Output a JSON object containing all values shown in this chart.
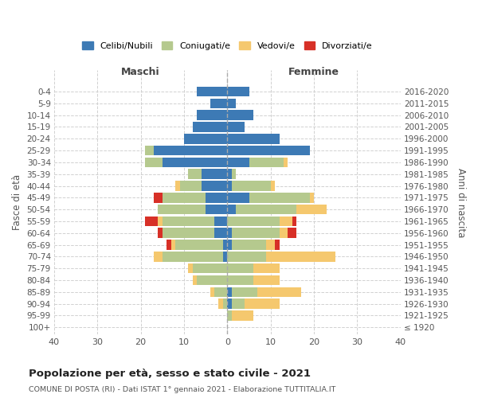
{
  "age_groups": [
    "100+",
    "95-99",
    "90-94",
    "85-89",
    "80-84",
    "75-79",
    "70-74",
    "65-69",
    "60-64",
    "55-59",
    "50-54",
    "45-49",
    "40-44",
    "35-39",
    "30-34",
    "25-29",
    "20-24",
    "15-19",
    "10-14",
    "5-9",
    "0-4"
  ],
  "birth_years": [
    "≤ 1920",
    "1921-1925",
    "1926-1930",
    "1931-1935",
    "1936-1940",
    "1941-1945",
    "1946-1950",
    "1951-1955",
    "1956-1960",
    "1961-1965",
    "1966-1970",
    "1971-1975",
    "1976-1980",
    "1981-1985",
    "1986-1990",
    "1991-1995",
    "1996-2000",
    "2001-2005",
    "2006-2010",
    "2011-2015",
    "2016-2020"
  ],
  "male": {
    "celibi": [
      0,
      0,
      0,
      0,
      0,
      0,
      1,
      1,
      3,
      3,
      5,
      5,
      6,
      6,
      15,
      17,
      10,
      8,
      7,
      4,
      7
    ],
    "coniugati": [
      0,
      0,
      1,
      3,
      7,
      8,
      14,
      11,
      12,
      12,
      11,
      10,
      5,
      3,
      4,
      2,
      0,
      0,
      0,
      0,
      0
    ],
    "vedovi": [
      0,
      0,
      1,
      1,
      1,
      1,
      2,
      1,
      0,
      1,
      0,
      0,
      1,
      0,
      0,
      0,
      0,
      0,
      0,
      0,
      0
    ],
    "divorziati": [
      0,
      0,
      0,
      0,
      0,
      0,
      0,
      1,
      1,
      3,
      0,
      2,
      0,
      0,
      0,
      0,
      0,
      0,
      0,
      0,
      0
    ]
  },
  "female": {
    "nubili": [
      0,
      0,
      1,
      1,
      0,
      0,
      0,
      1,
      1,
      0,
      2,
      5,
      1,
      1,
      5,
      19,
      12,
      4,
      6,
      2,
      5
    ],
    "coniugate": [
      0,
      1,
      3,
      6,
      6,
      6,
      9,
      8,
      11,
      12,
      14,
      14,
      9,
      1,
      8,
      0,
      0,
      0,
      0,
      0,
      0
    ],
    "vedove": [
      0,
      5,
      8,
      10,
      6,
      6,
      16,
      2,
      2,
      3,
      7,
      1,
      1,
      0,
      1,
      0,
      0,
      0,
      0,
      0,
      0
    ],
    "divorziate": [
      0,
      0,
      0,
      0,
      0,
      0,
      0,
      1,
      2,
      1,
      0,
      0,
      0,
      0,
      0,
      0,
      0,
      0,
      0,
      0,
      0
    ]
  },
  "colors": {
    "celibi": "#3d7ab5",
    "coniugati": "#b5c98e",
    "vedovi": "#f5c86e",
    "divorziati": "#d73027"
  },
  "xlim": 40,
  "title": "Popolazione per età, sesso e stato civile - 2021",
  "subtitle": "COMUNE DI POSTA (RI) - Dati ISTAT 1° gennaio 2021 - Elaborazione TUTTITALIA.IT",
  "xlabel_left": "Maschi",
  "xlabel_right": "Femmine",
  "ylabel_left": "Fasce di età",
  "ylabel_right": "Anni di nascita",
  "legend_labels": [
    "Celibi/Nubili",
    "Coniugati/e",
    "Vedovi/e",
    "Divorziati/e"
  ],
  "bg_color": "#ffffff",
  "grid_color": "#cccccc"
}
